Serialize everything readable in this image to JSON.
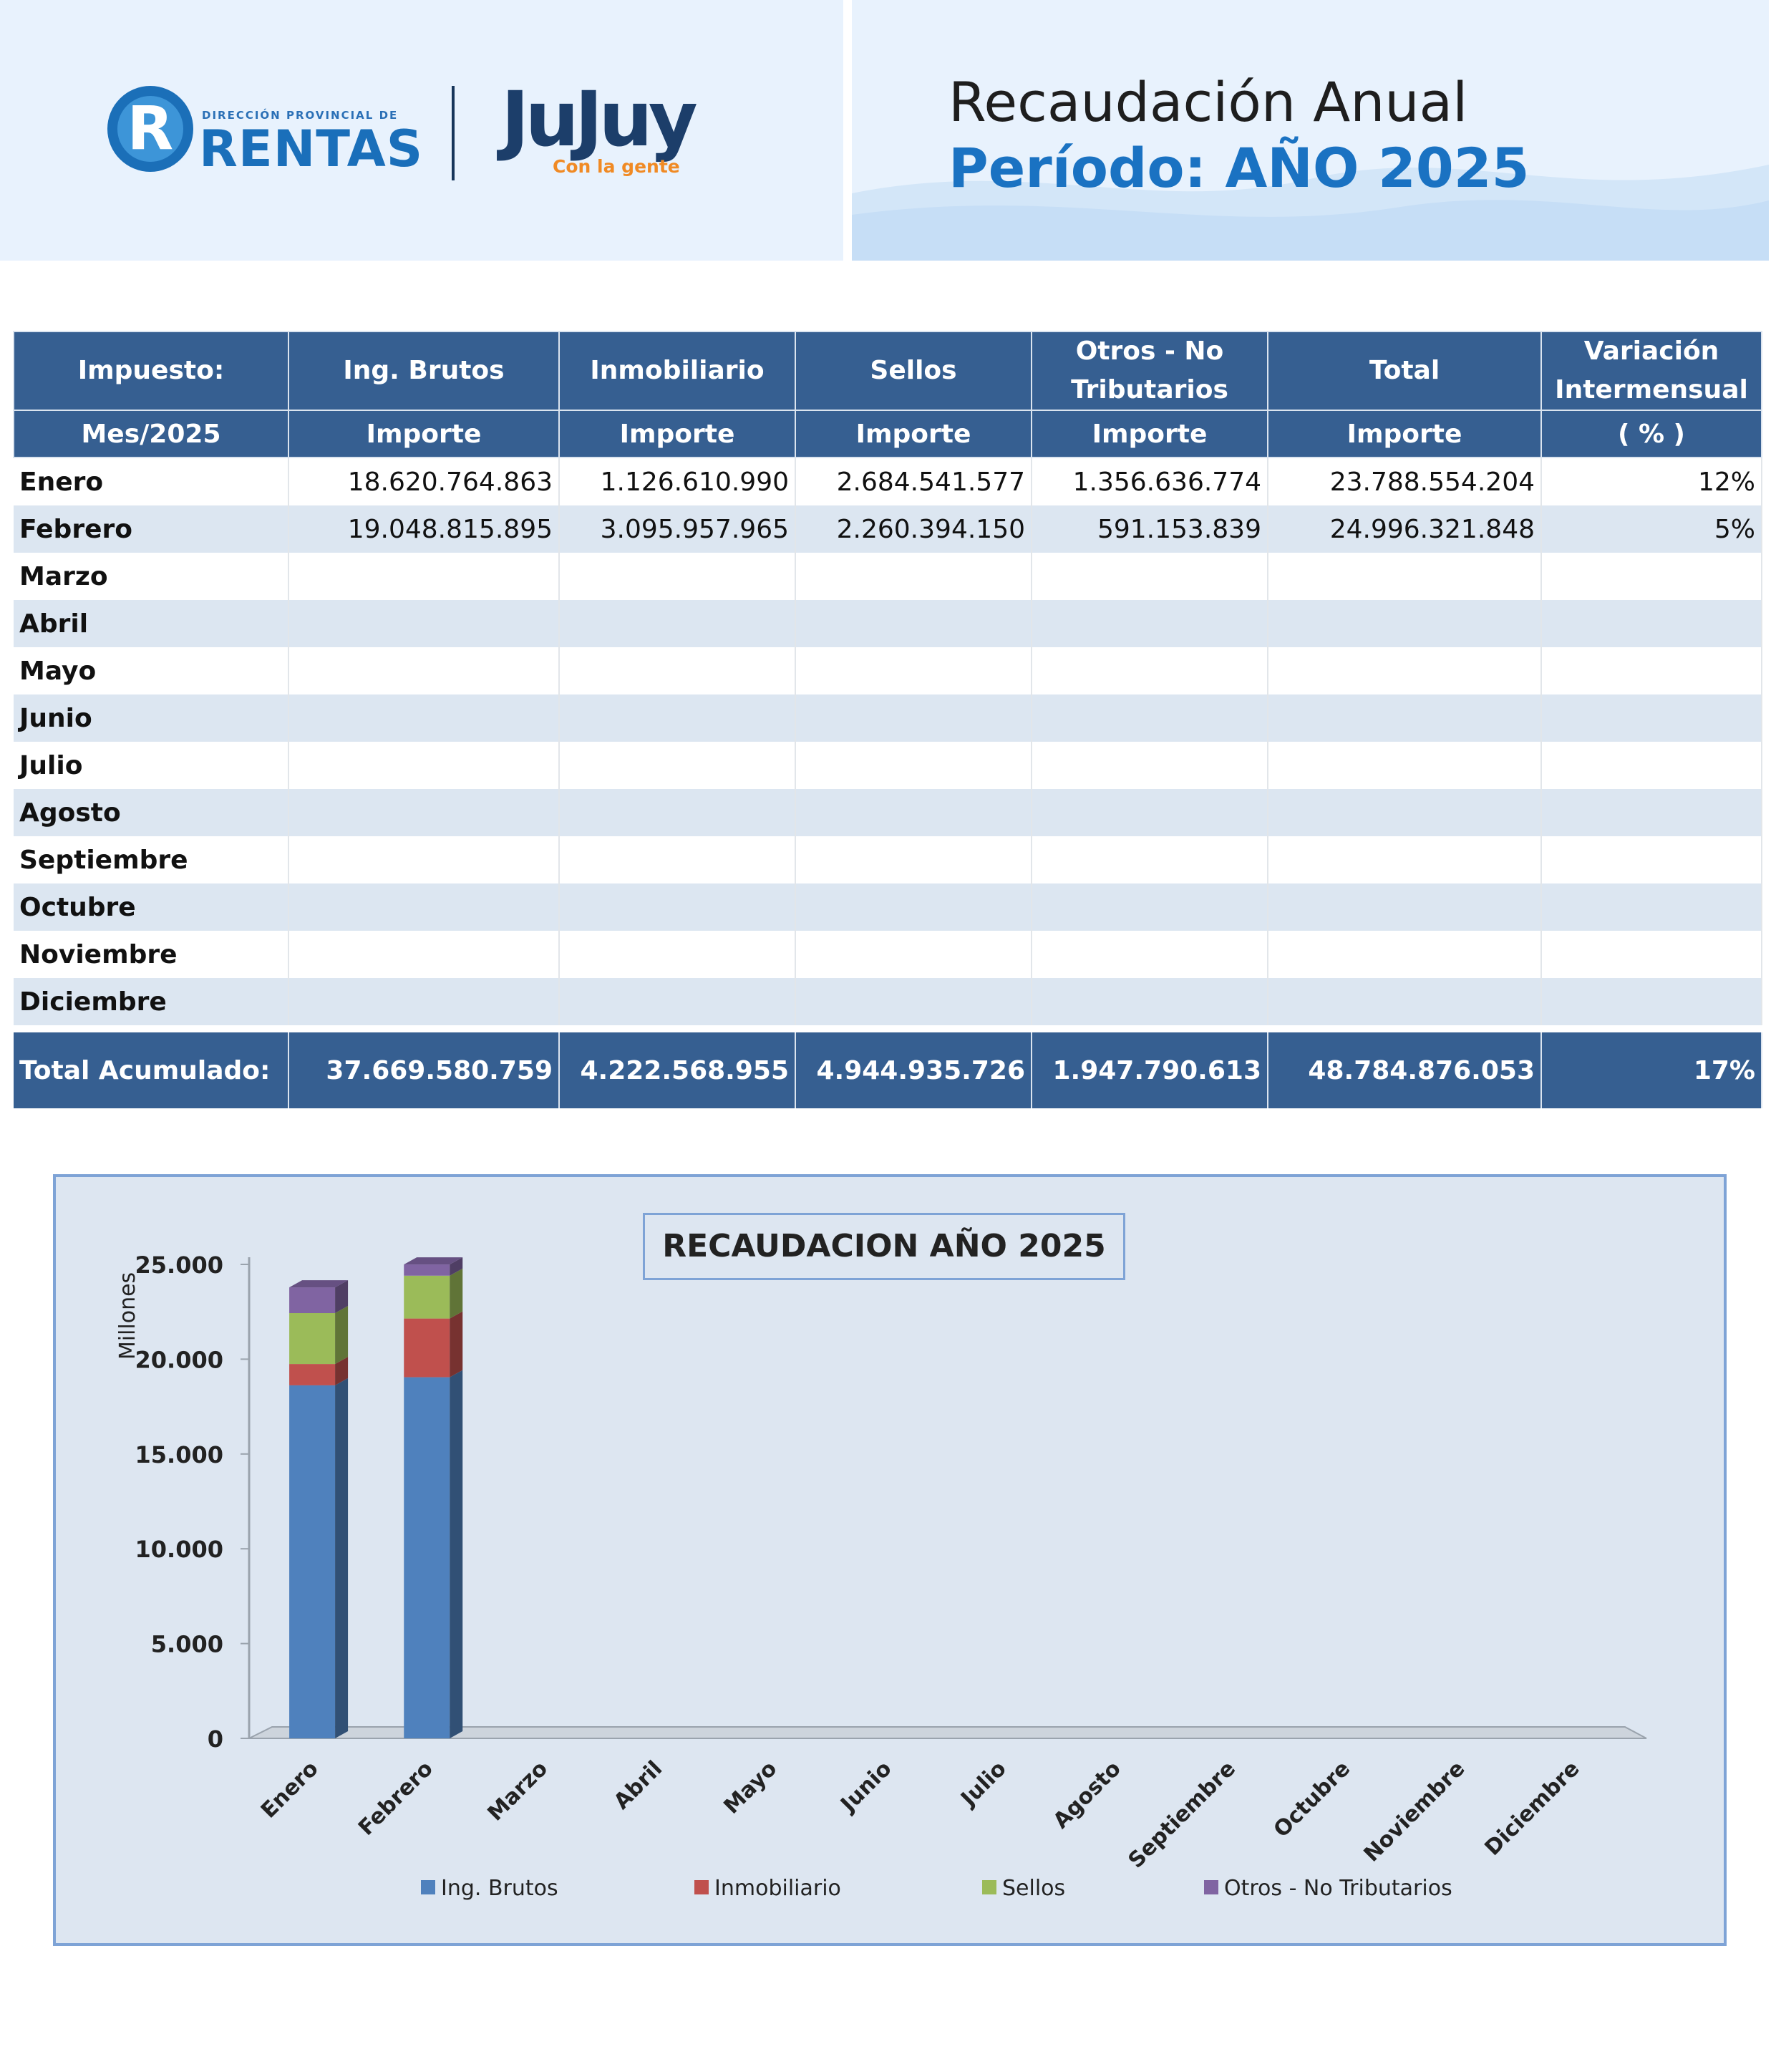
{
  "header": {
    "org_small": "DIRECCIÓN PROVINCIAL DE",
    "org_name": "RENTAS",
    "org_initial": "R",
    "province": "JuJuy",
    "province_tag": "Con la gente",
    "title": "Recaudación Anual",
    "period": "Período: AÑO 2025"
  },
  "table": {
    "headers_row1": [
      "Impuesto:",
      "Ing. Brutos",
      "Inmobiliario",
      "Sellos",
      "Otros - No Tributarios",
      "Total",
      "Variación Intermensual"
    ],
    "headers_row2": [
      "Mes/2025",
      "Importe",
      "Importe",
      "Importe",
      "Importe",
      "Importe",
      "( % )"
    ],
    "rows": [
      [
        "Enero",
        "18.620.764.863",
        "1.126.610.990",
        "2.684.541.577",
        "1.356.636.774",
        "23.788.554.204",
        "12%"
      ],
      [
        "Febrero",
        "19.048.815.895",
        "3.095.957.965",
        "2.260.394.150",
        "591.153.839",
        "24.996.321.848",
        "5%"
      ],
      [
        "Marzo",
        "",
        "",
        "",
        "",
        "",
        ""
      ],
      [
        "Abril",
        "",
        "",
        "",
        "",
        "",
        ""
      ],
      [
        "Mayo",
        "",
        "",
        "",
        "",
        "",
        ""
      ],
      [
        "Junio",
        "",
        "",
        "",
        "",
        "",
        ""
      ],
      [
        "Julio",
        "",
        "",
        "",
        "",
        "",
        ""
      ],
      [
        "Agosto",
        "",
        "",
        "",
        "",
        "",
        ""
      ],
      [
        "Septiembre",
        "",
        "",
        "",
        "",
        "",
        ""
      ],
      [
        "Octubre",
        "",
        "",
        "",
        "",
        "",
        ""
      ],
      [
        "Noviembre",
        "",
        "",
        "",
        "",
        "",
        ""
      ],
      [
        "Diciembre",
        "",
        "",
        "",
        "",
        "",
        ""
      ]
    ],
    "total_row": [
      "Total Acumulado:",
      "37.669.580.759",
      "4.222.568.955",
      "4.944.935.726",
      "1.947.790.613",
      "48.784.876.053",
      "17%"
    ]
  },
  "chart_data": {
    "type": "bar",
    "stacked": true,
    "title": "RECAUDACION AÑO 2025",
    "ylabel": "Millones",
    "xlabel": "",
    "ylim": [
      0,
      25000
    ],
    "yticks": [
      0,
      5000,
      10000,
      15000,
      20000,
      25000
    ],
    "ytick_labels": [
      "0",
      "5.000",
      "10.000",
      "15.000",
      "20.000",
      "25.000"
    ],
    "categories": [
      "Enero",
      "Febrero",
      "Marzo",
      "Abril",
      "Mayo",
      "Junio",
      "Julio",
      "Agosto",
      "Septiembre",
      "Octubre",
      "Noviembre",
      "Diciembre"
    ],
    "series": [
      {
        "name": "Ing. Brutos",
        "color": "#4f81bd",
        "values": [
          18620.8,
          19048.8,
          null,
          null,
          null,
          null,
          null,
          null,
          null,
          null,
          null,
          null
        ]
      },
      {
        "name": "Inmobiliario",
        "color": "#c0504d",
        "values": [
          1126.6,
          3096.0,
          null,
          null,
          null,
          null,
          null,
          null,
          null,
          null,
          null,
          null
        ]
      },
      {
        "name": "Sellos",
        "color": "#9bbb59",
        "values": [
          2684.5,
          2260.4,
          null,
          null,
          null,
          null,
          null,
          null,
          null,
          null,
          null,
          null
        ]
      },
      {
        "name": "Otros - No Tributarios",
        "color": "#8064a2",
        "values": [
          1356.6,
          591.2,
          null,
          null,
          null,
          null,
          null,
          null,
          null,
          null,
          null,
          null
        ]
      }
    ],
    "legend_position": "bottom",
    "grid": false
  }
}
